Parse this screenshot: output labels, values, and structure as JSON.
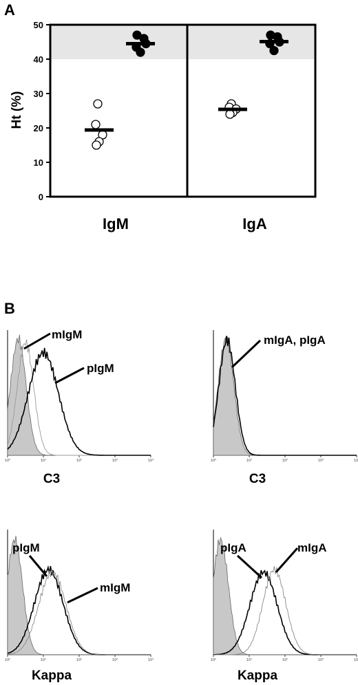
{
  "panel_a_label": "A",
  "panel_b_label": "B",
  "chart_data": [
    {
      "type": "scatter",
      "ylabel": "Ht (%)",
      "ylim": [
        0,
        50
      ],
      "yticks": [
        "0",
        "10",
        "20",
        "30",
        "40",
        "50"
      ],
      "normal_range": [
        40,
        50
      ],
      "categories": [
        "IgM",
        "IgA"
      ],
      "groups": [
        {
          "category": "IgM",
          "fill": "open",
          "values": [
            27,
            21,
            18,
            16,
            15
          ],
          "mean": 19.4
        },
        {
          "category": "IgM",
          "fill": "filled",
          "values": [
            47,
            46,
            44.5,
            43.5,
            42
          ],
          "mean": 44.5
        },
        {
          "category": "IgA",
          "fill": "open",
          "values": [
            27,
            26,
            25.5,
            24.5,
            24
          ],
          "mean": 25.4
        },
        {
          "category": "IgA",
          "fill": "filled",
          "values": [
            47,
            46.5,
            45,
            44.5,
            42.5
          ],
          "mean": 45.1
        }
      ],
      "colors": {
        "filled": "#000000",
        "open": "#ffffff",
        "normal_band": "#e6e6e6"
      }
    },
    {
      "type": "area",
      "subtype": "flow-cytometry-histogram",
      "xlabel": "C3",
      "x_scale": "log",
      "xlim": [
        1,
        10000
      ],
      "x_ticks": [
        "10⁰",
        "10¹",
        "10²",
        "10³",
        "10⁴"
      ],
      "series_labels": [
        "mIgM",
        "pIgM"
      ]
    },
    {
      "type": "area",
      "subtype": "flow-cytometry-histogram",
      "xlabel": "C3",
      "x_scale": "log",
      "xlim": [
        1,
        10000
      ],
      "x_ticks": [
        "10⁰",
        "10¹",
        "10²",
        "10³",
        "10⁴"
      ],
      "series_labels": [
        "mIgA, pIgA"
      ]
    },
    {
      "type": "area",
      "subtype": "flow-cytometry-histogram",
      "xlabel": "Kappa",
      "x_scale": "log",
      "xlim": [
        1,
        10000
      ],
      "x_ticks": [
        "10⁰",
        "10¹",
        "10²",
        "10³",
        "10⁴"
      ],
      "series_labels": [
        "pIgM",
        "mIgM"
      ]
    },
    {
      "type": "area",
      "subtype": "flow-cytometry-histogram",
      "xlabel": "Kappa",
      "x_scale": "log",
      "xlim": [
        1,
        10000
      ],
      "x_ticks": [
        "10⁰",
        "10¹",
        "10²",
        "10³",
        "10⁴"
      ],
      "series_labels": [
        "pIgA",
        "mIgA"
      ]
    }
  ]
}
